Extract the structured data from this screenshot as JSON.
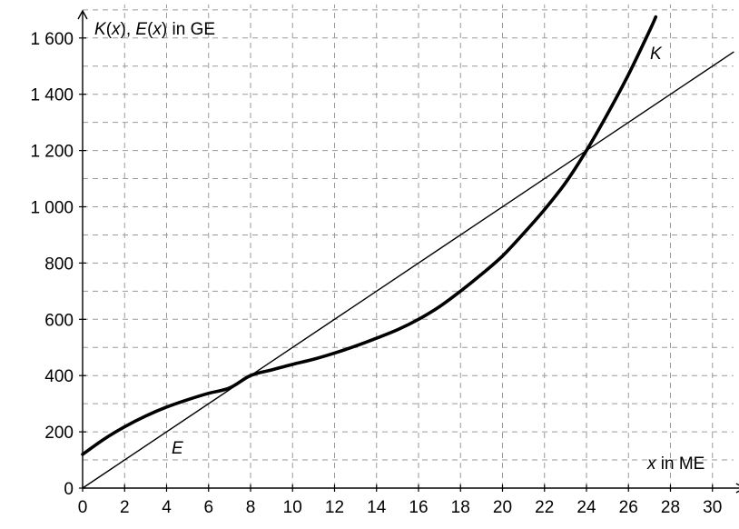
{
  "chart_data": {
    "type": "line",
    "ylabel_parts": [
      "K",
      "(",
      "x",
      "), ",
      "E",
      "(",
      "x",
      ") in GE"
    ],
    "xlabel_parts": [
      "x",
      " in ME"
    ],
    "xlim": [
      0,
      31
    ],
    "ylim": [
      0,
      1700
    ],
    "x_ticks": [
      0,
      2,
      4,
      6,
      8,
      10,
      12,
      14,
      16,
      18,
      20,
      22,
      24,
      26,
      28,
      30
    ],
    "y_ticks": [
      0,
      200,
      400,
      600,
      800,
      1000,
      1200,
      1400,
      1600
    ],
    "y_tick_labels": [
      "0",
      "200",
      "400",
      "600",
      "800",
      "1 000",
      "1 200",
      "1 400",
      "1 600"
    ],
    "grid": true,
    "series": [
      {
        "name": "K",
        "style": "thick",
        "x": [
          0,
          1,
          2,
          3,
          4,
          5,
          6,
          7,
          8,
          9,
          10,
          11,
          12,
          13,
          14,
          15,
          16,
          17,
          18,
          19,
          20,
          21,
          22,
          23,
          24,
          25,
          26,
          27,
          27.3
        ],
        "y": [
          120,
          173,
          218,
          256,
          288,
          314,
          337,
          356,
          400,
          420,
          440,
          458,
          480,
          505,
          533,
          563,
          600,
          645,
          700,
          760,
          825,
          905,
          990,
          1085,
          1200,
          1330,
          1470,
          1625,
          1675
        ]
      },
      {
        "name": "E",
        "style": "thin",
        "x": [
          0,
          31
        ],
        "y": [
          0,
          1550
        ]
      }
    ]
  }
}
